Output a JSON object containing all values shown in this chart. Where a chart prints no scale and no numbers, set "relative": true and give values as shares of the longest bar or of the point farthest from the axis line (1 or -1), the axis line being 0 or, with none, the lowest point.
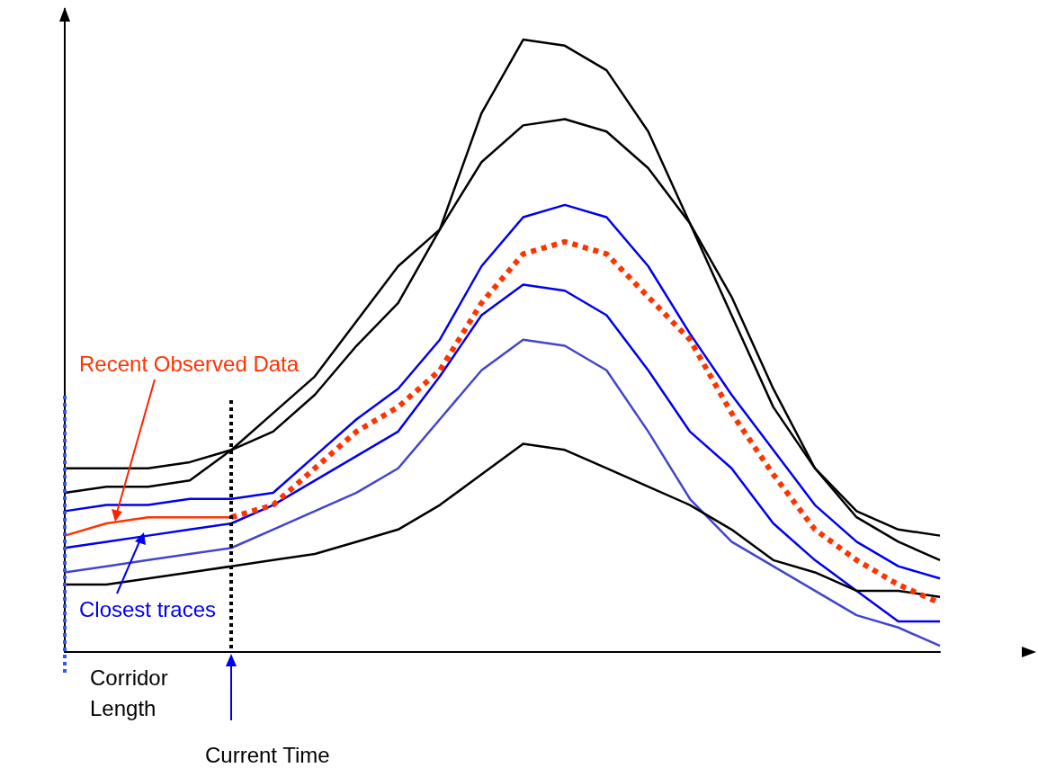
{
  "chart_data": {
    "type": "line",
    "relative": true,
    "categories": [
      null,
      null,
      null,
      null,
      null,
      null,
      null,
      null,
      null,
      null,
      null,
      null,
      null,
      null,
      null,
      null,
      null,
      null,
      null,
      null,
      null,
      null
    ],
    "series": [
      {
        "color": "#000000",
        "values": [
          0.3,
          0.3,
          0.3,
          0.31,
          0.33,
          0.36,
          0.42,
          0.5,
          0.57,
          0.69,
          0.88,
          1.0,
          0.99,
          0.95,
          0.85,
          0.7,
          0.55,
          0.4,
          0.3,
          0.23,
          0.2,
          0.19
        ]
      },
      {
        "color": "#000000",
        "values": [
          0.26,
          0.27,
          0.27,
          0.28,
          0.33,
          0.39,
          0.45,
          0.54,
          0.63,
          0.69,
          0.8,
          0.86,
          0.87,
          0.85,
          0.79,
          0.7,
          0.58,
          0.43,
          0.3,
          0.22,
          0.18,
          0.15
        ]
      },
      {
        "color": "#0000ee",
        "values": [
          0.23,
          0.24,
          0.24,
          0.25,
          0.25,
          0.26,
          0.32,
          0.38,
          0.43,
          0.51,
          0.63,
          0.71,
          0.73,
          0.71,
          0.63,
          0.52,
          0.42,
          0.33,
          0.24,
          0.18,
          0.14,
          0.12
        ]
      },
      {
        "name": "Recent Observed Data",
        "color": "#ff3300",
        "values": [
          0.19,
          0.21,
          0.22,
          0.22,
          0.22,
          null,
          null,
          null,
          null,
          null,
          null,
          null,
          null,
          null,
          null,
          null,
          null,
          null,
          null,
          null,
          null,
          null
        ]
      },
      {
        "color": "#ff3300",
        "line_style": "dotted",
        "values": [
          null,
          null,
          null,
          null,
          0.22,
          0.24,
          0.3,
          0.36,
          0.4,
          0.46,
          0.57,
          0.65,
          0.67,
          0.65,
          0.58,
          0.51,
          0.39,
          0.29,
          0.2,
          0.15,
          0.11,
          0.08
        ]
      },
      {
        "color": "#0000ee",
        "values": [
          0.17,
          0.18,
          0.19,
          0.2,
          0.21,
          0.24,
          0.28,
          0.32,
          0.36,
          0.45,
          0.55,
          0.6,
          0.59,
          0.55,
          0.46,
          0.36,
          0.3,
          0.21,
          0.15,
          0.1,
          0.05,
          0.05
        ]
      },
      {
        "color": "#4444cc",
        "values": [
          0.13,
          0.14,
          0.15,
          0.16,
          0.17,
          0.2,
          0.23,
          0.26,
          0.3,
          0.38,
          0.46,
          0.51,
          0.5,
          0.46,
          0.36,
          0.25,
          0.18,
          0.14,
          0.1,
          0.06,
          0.04,
          0.01
        ]
      },
      {
        "color": "#000000",
        "values": [
          0.11,
          0.11,
          0.12,
          0.13,
          0.14,
          0.15,
          0.16,
          0.18,
          0.2,
          0.24,
          0.29,
          0.34,
          0.33,
          0.3,
          0.27,
          0.24,
          0.2,
          0.15,
          0.13,
          0.1,
          0.1,
          0.09
        ]
      }
    ],
    "annotations": [
      "Closest traces",
      "Corridor Length",
      "Current Time"
    ],
    "marker": "none",
    "line_style": "solid",
    "grid": false,
    "legend": false
  }
}
